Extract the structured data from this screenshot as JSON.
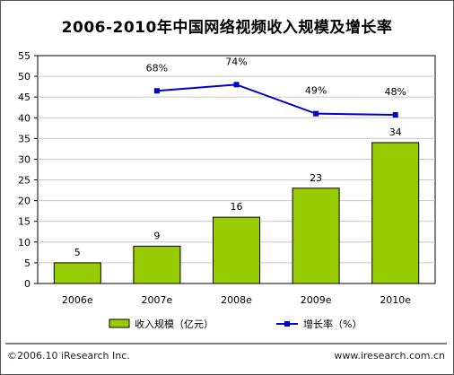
{
  "title": "2006-2010年中国网络视频收入规模及增长率",
  "chart_data": {
    "type": "bar",
    "categories": [
      "2006e",
      "2007e",
      "2008e",
      "2009e",
      "2010e"
    ],
    "series": [
      {
        "name": "收入规模（亿元）",
        "type": "bar",
        "values": [
          5,
          9,
          16,
          23,
          34
        ],
        "labels": [
          "5",
          "9",
          "16",
          "23",
          "34"
        ],
        "color": "#99cc00"
      },
      {
        "name": "增长率（%）",
        "type": "line",
        "values": [
          null,
          46.5,
          48,
          41,
          40.7
        ],
        "labels": [
          "",
          "68%",
          "74%",
          "49%",
          "48%"
        ],
        "color": "#0000cc"
      }
    ],
    "ylim": [
      0,
      55
    ],
    "yticks": [
      "0",
      "5",
      "10",
      "15",
      "20",
      "25",
      "30",
      "35",
      "40",
      "45",
      "50",
      "55"
    ],
    "grid": true,
    "legend_position": "bottom"
  },
  "footer": {
    "copyright": "©2006.10 iResearch Inc.",
    "website": "www.iresearch.com.cn"
  }
}
